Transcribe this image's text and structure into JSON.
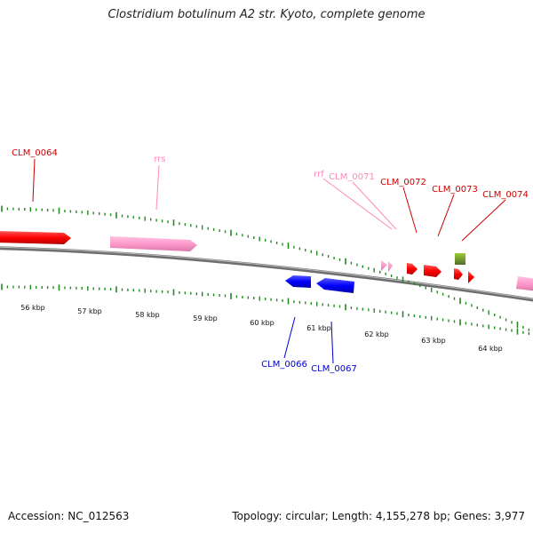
{
  "title": "Clostridium botulinum A2 str. Kyoto, complete genome",
  "accession_text": "Accession: NC_012563",
  "summary_text": "Topology: circular; Length: 4,155,278 bp; Genes: 3,977",
  "colors": {
    "forward_cds": "#ff0000",
    "reverse_cds": "#0000ff",
    "rna": "#ff99cc",
    "other_feature": "#6b8e23",
    "ticks": "#228b22",
    "backbone": "#888888"
  },
  "scale_labels": [
    "56 kbp",
    "57 kbp",
    "58 kbp",
    "59 kbp",
    "60 kbp",
    "61 kbp",
    "62 kbp",
    "63 kbp",
    "64 kbp"
  ],
  "gene_labels": [
    {
      "text": "CLM_0064",
      "strand": "forward"
    },
    {
      "text": "rrs",
      "strand": "rna"
    },
    {
      "text": "rrf",
      "strand": "rna"
    },
    {
      "text": "CLM_0071",
      "strand": "rna"
    },
    {
      "text": "CLM_0072",
      "strand": "forward"
    },
    {
      "text": "CLM_0073",
      "strand": "forward"
    },
    {
      "text": "CLM_0074",
      "strand": "forward"
    },
    {
      "text": "CLM_0066",
      "strand": "reverse"
    },
    {
      "text": "CLM_0067",
      "strand": "reverse"
    }
  ]
}
